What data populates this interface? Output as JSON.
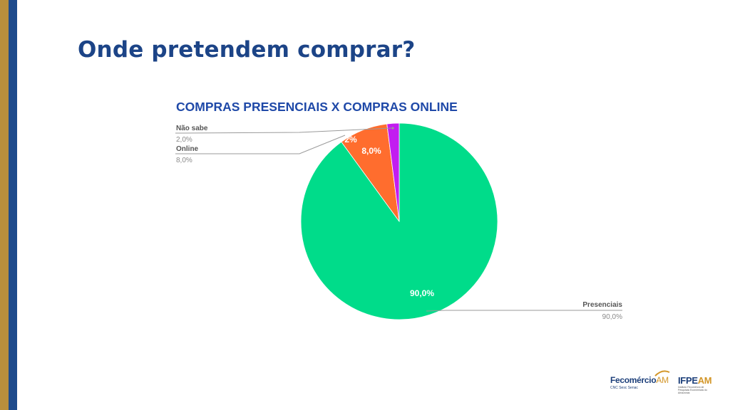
{
  "slide": {
    "title": "Onde pretendem comprar?"
  },
  "colors": {
    "left_bar_gold": "#b98f3c",
    "left_bar_blue": "#1e4b8c",
    "title_blue": "#1c4487",
    "chart_title_blue": "#1f49a8"
  },
  "chart_data": {
    "type": "pie",
    "title": "COMPRAS PRESENCIAIS X COMPRAS ONLINE",
    "slices": [
      {
        "name": "Presenciais",
        "value": 90.0,
        "label": "90,0%",
        "callout_value": "90,0%",
        "color": "#00dc8a"
      },
      {
        "name": "Online",
        "value": 8.0,
        "label": "8,0%",
        "callout_value": "8,0%",
        "color": "#ff6d2e"
      },
      {
        "name": "Não sabe",
        "value": 2.0,
        "label": "2%",
        "callout_value": "2,0%",
        "color": "#c21df0"
      }
    ],
    "start": "12 o'clock",
    "direction": "clockwise",
    "legend": "callouts"
  },
  "footer": {
    "logo1_main": "Fecomércio",
    "logo1_am": "AM",
    "logo1_sub": "CNC Sesc Senac",
    "logo2_main": "IFPE",
    "logo2_am": "AM",
    "logo2_sub": "Instituto Fecomércio de Pesquisas Econômicas do Amazonas"
  }
}
